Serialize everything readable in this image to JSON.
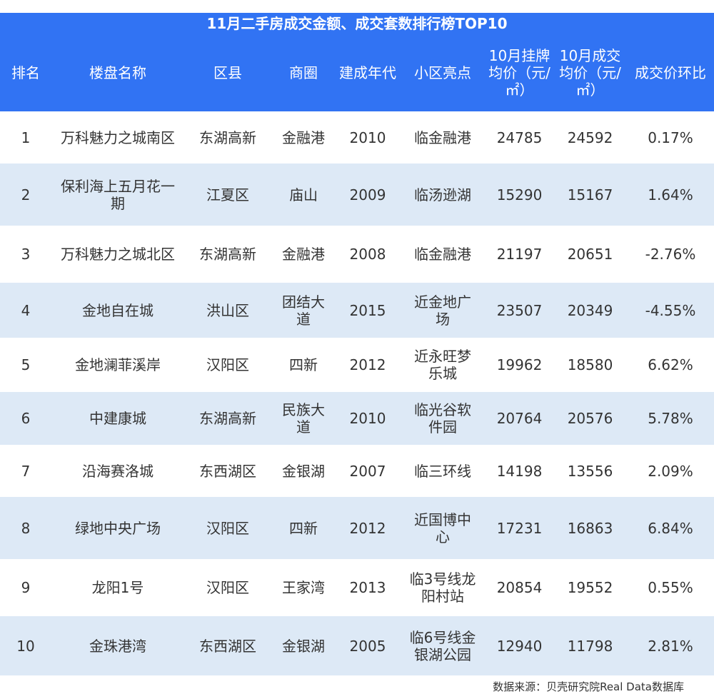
{
  "chart_data": {
    "type": "table",
    "title": "11月二手房成交金额、成交套数排行榜TOP10",
    "columns": [
      "排名",
      "楼盘名称",
      "区县",
      "商圈",
      "建成年代",
      "小区亮点",
      "10月挂牌均价（元/㎡）",
      "10月成交均价（元/㎡）",
      "成交价环比"
    ],
    "rows": [
      [
        "1",
        "万科魅力之城南区",
        "东湖高新",
        "金融港",
        "2010",
        "临金融港",
        "24785",
        "24592",
        "0.17%"
      ],
      [
        "2",
        "保利海上五月花一期",
        "江夏区",
        "庙山",
        "2009",
        "临汤逊湖",
        "15290",
        "15167",
        "1.64%"
      ],
      [
        "3",
        "万科魅力之城北区",
        "东湖高新",
        "金融港",
        "2008",
        "临金融港",
        "21197",
        "20651",
        "-2.76%"
      ],
      [
        "4",
        "金地自在城",
        "洪山区",
        "团结大道",
        "2015",
        "近金地广场",
        "23507",
        "20349",
        "-4.55%"
      ],
      [
        "5",
        "金地澜菲溪岸",
        "汉阳区",
        "四新",
        "2012",
        "近永旺梦乐城",
        "19962",
        "18580",
        "6.62%"
      ],
      [
        "6",
        "中建康城",
        "东湖高新",
        "民族大道",
        "2010",
        "临光谷软件园",
        "20764",
        "20576",
        "5.78%"
      ],
      [
        "7",
        "沿海赛洛城",
        "东西湖区",
        "金银湖",
        "2007",
        "临三环线",
        "14198",
        "13556",
        "2.09%"
      ],
      [
        "8",
        "绿地中央广场",
        "汉阳区",
        "四新",
        "2012",
        "近国博中心",
        "17231",
        "16863",
        "6.84%"
      ],
      [
        "9",
        "龙阳1号",
        "汉阳区",
        "王家湾",
        "2013",
        "临3号线龙阳村站",
        "20854",
        "19552",
        "0.55%"
      ],
      [
        "10",
        "金珠港湾",
        "东西湖区",
        "金银湖",
        "2005",
        "临6号线金银湖公园",
        "12940",
        "11798",
        "2.81%"
      ]
    ]
  },
  "source": "数据来源：贝壳研究院Real Data数据库",
  "colors": {
    "header": "#3173f3",
    "alt_row": "#dde9f6"
  }
}
